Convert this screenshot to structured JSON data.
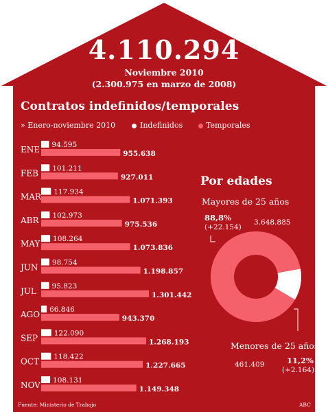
{
  "headline": {
    "total": "4.110.294",
    "period": "Noviembre 2010",
    "comparison": "(2.300.975 en marzo de 2008)"
  },
  "section_title": "Contratos indefinidos/temporales",
  "legend": {
    "period": "» Enero-noviembre 2010",
    "indefinidos": "Indefinidos",
    "temporales": "Temporales"
  },
  "age": {
    "title": "Por edades",
    "over25_label": "Mayores de 25 años",
    "over25_pct": "88,8%",
    "over25_delta": "(+22.154)",
    "over25_value": "3.648.885",
    "under25_label": "Menores de 25 años",
    "under25_pct": "11,2%",
    "under25_delta": "(+2.164)",
    "under25_value": "461.409"
  },
  "footer": {
    "source": "Fuente: Ministerio de Trabajo",
    "brand": "ABC"
  },
  "colors": {
    "house": "#b3151d",
    "indefinidos": "#ffffff",
    "temporales": "#f4616b"
  },
  "chart_data": [
    {
      "type": "bar",
      "categories": [
        "ENE",
        "FEB",
        "MAR",
        "ABR",
        "MAY",
        "JUN",
        "JUL",
        "AGO",
        "SEP",
        "OCT",
        "NOV"
      ],
      "series": [
        {
          "name": "Indefinidos",
          "values": [
            94595,
            101211,
            117934,
            102973,
            108264,
            98754,
            95823,
            66846,
            122090,
            118422,
            108131
          ],
          "labels": [
            "94.595",
            "101.211",
            "117.934",
            "102.973",
            "108.264",
            "98.754",
            "95.823",
            "66.846",
            "122.090",
            "118.422",
            "108.131"
          ]
        },
        {
          "name": "Temporales",
          "values": [
            955638,
            927011,
            1071393,
            975536,
            1073836,
            1198857,
            1301442,
            943370,
            1268193,
            1227665,
            1149348
          ],
          "labels": [
            "955.638",
            "927.011",
            "1.071.393",
            "975.536",
            "1.073.836",
            "1.198.857",
            "1.301.442",
            "943.370",
            "1.268.193",
            "1.227.665",
            "1.149.348"
          ]
        }
      ]
    },
    {
      "type": "pie",
      "categories": [
        "Mayores de 25 años",
        "Menores de 25 años"
      ],
      "values": [
        88.8,
        11.2
      ]
    }
  ]
}
